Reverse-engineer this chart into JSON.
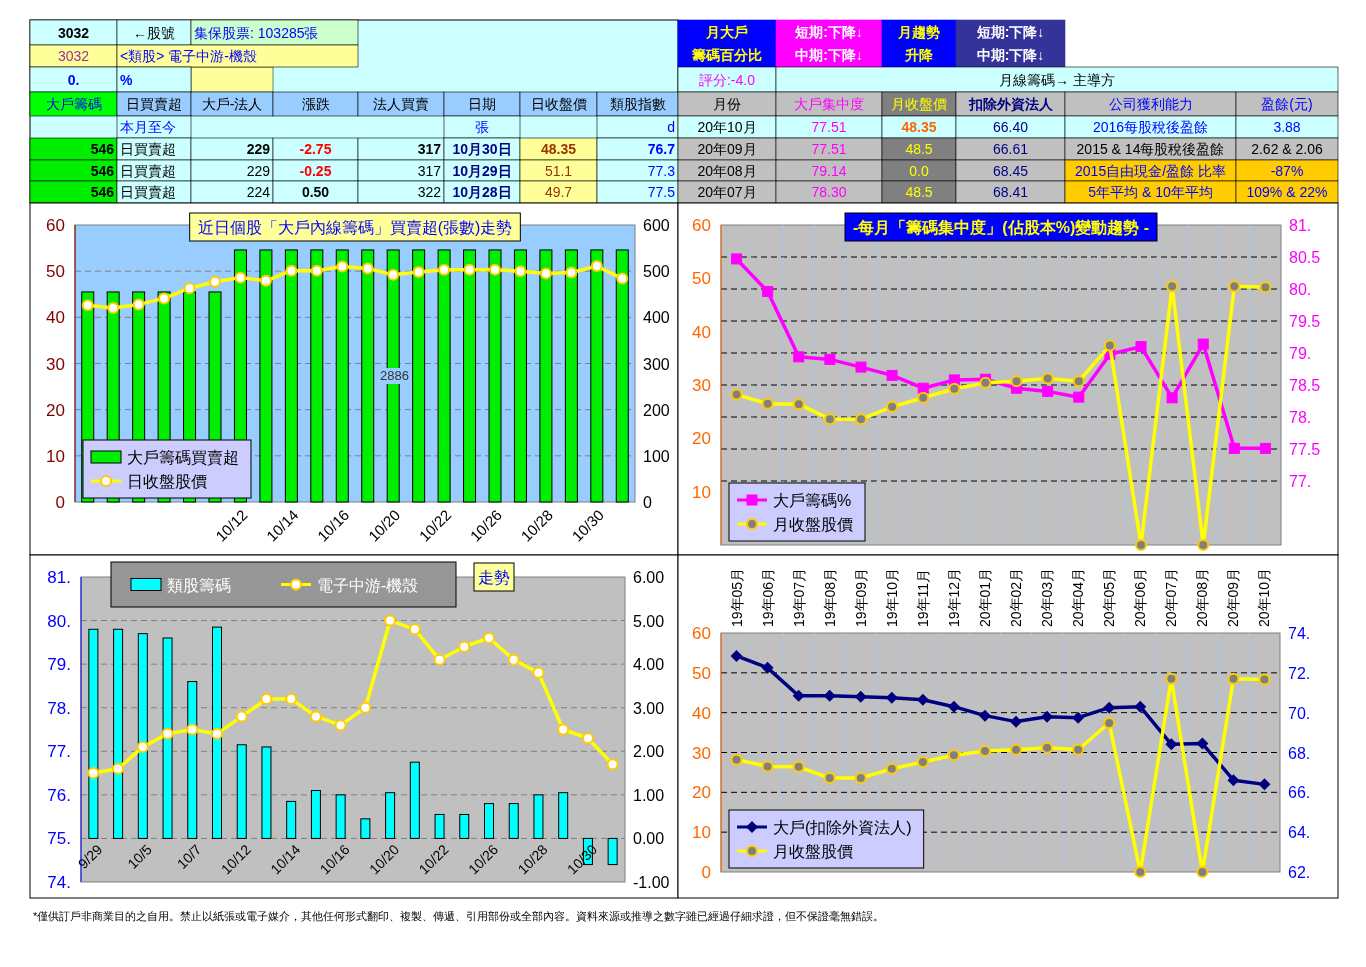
{
  "chart_data": [
    {
      "type": "other",
      "annotations": [
        "3032",
        "←股號",
        "集保股票: 103285張",
        "3032",
        "<類股> 電子中游-機殼",
        "0.",
        "%",
        "大戶籌碼",
        "日買賣超",
        "大戶-法人",
        "漲跌",
        "法人買賣",
        "日期",
        "日收盤價",
        "類股指數",
        "本月至今",
        "張",
        "d",
        "546",
        "日買賣超",
        "229",
        "-2.75",
        "317",
        "10月30日",
        "48.35",
        "76.7",
        "546",
        "日買賣超",
        "229",
        "-0.25",
        "317",
        "10月29日",
        "51.1",
        "77.3",
        "546",
        "日買賣超",
        "224",
        "0.50",
        "322",
        "10月28日",
        "49.7",
        "77.5",
        "月大戶",
        "籌碼百分比",
        "短期:下降↓",
        "中期:下降↓",
        "月趨勢",
        "升降",
        "短期:下降↓",
        "中期:下降↓",
        "評分:-4.0",
        "月線籌碼→ 主導方",
        "月份",
        "大戶集中度",
        "月收盤價",
        "扣除外資法人",
        "公司獲利能力",
        "盈餘(元)",
        "20年10月",
        "77.51",
        "48.35",
        "66.40",
        "2016每股稅後盈餘",
        "3.88",
        "20年09月",
        "77.51",
        "48.5",
        "66.61",
        "2015 & 14每股稅後盈餘",
        "2.62 & 2.06",
        "20年08月",
        "79.14",
        "0.0",
        "68.45",
        "2015自由現金/盈餘 比率",
        "-87%",
        "20年07月",
        "78.30",
        "48.5",
        "68.41",
        "5年平均 & 10年平均",
        "109% & 22%",
        "*僅供訂戶非商業目的之自用。禁止以紙張或電子媒介，其他任何形式翻印、複製、傳遞、引用部份或全部內容。資料來源或推導之數字雖已經過仔細求證，但不保證毫無錯誤。"
      ]
    },
    {
      "type": "bar",
      "title": "近日個股「大戶內線籌碼」買賣超(張數)走勢",
      "categories": [
        null,
        null,
        null,
        null,
        null,
        null,
        "10/12",
        null,
        "10/14",
        null,
        "10/16",
        null,
        "10/20",
        null,
        "10/22",
        null,
        "10/26",
        null,
        "10/28",
        null,
        "10/30",
        null
      ],
      "series": [
        {
          "name": "大戶籌碼買賣超",
          "type": "bar",
          "axis": "y2",
          "color": "#00ee00",
          "values": [
            455,
            455,
            455,
            455,
            455,
            455,
            546,
            546,
            546,
            546,
            546,
            546,
            546,
            546,
            546,
            546,
            546,
            546,
            546,
            546,
            546,
            546
          ]
        },
        {
          "name": "日收盤股價",
          "type": "line",
          "axis": "y",
          "color": "#ffff00",
          "marker": "circle",
          "values": [
            42.6,
            42.0,
            42.8,
            44.1,
            46.3,
            47.7,
            48.6,
            47.9,
            50.1,
            50.1,
            51.0,
            50.6,
            49.2,
            49.8,
            50.3,
            50.3,
            50.3,
            50.0,
            49.5,
            49.7,
            51.1,
            48.4
          ]
        }
      ],
      "ylim": [
        0,
        60
      ],
      "yticks": [
        0,
        10,
        20,
        30,
        40,
        50,
        60
      ],
      "y2lim": [
        0,
        600
      ],
      "y2ticks": [
        0,
        100,
        200,
        300,
        400,
        500,
        600
      ],
      "grid": "y",
      "legend": "bottom left",
      "annotations": [
        "2886"
      ]
    },
    {
      "type": "line",
      "title": "-每月「籌碼集中度」(佔股本%)變動趨勢 -",
      "categories": [
        null,
        null,
        null,
        null,
        null,
        null,
        null,
        null,
        null,
        null,
        null,
        null,
        null,
        null,
        null,
        null,
        null,
        null
      ],
      "series": [
        {
          "name": "大戶籌碼%",
          "type": "line",
          "axis": "y2",
          "color": "#ff00ff",
          "marker": "square",
          "values": [
            80.47,
            79.96,
            78.94,
            78.9,
            78.78,
            78.65,
            78.45,
            78.58,
            78.59,
            78.45,
            78.4,
            78.31,
            78.98,
            79.1,
            78.3,
            79.14,
            77.51,
            77.51
          ]
        },
        {
          "name": "月收盤股價",
          "type": "line",
          "axis": "y",
          "color": "#ffff00",
          "marker": "circle",
          "values": [
            28.2,
            26.5,
            26.4,
            23.6,
            23.6,
            25.9,
            27.6,
            29.3,
            30.4,
            30.7,
            31.2,
            30.7,
            37.4,
            0,
            48.5,
            0,
            48.5,
            48.35
          ]
        }
      ],
      "ylim": [
        0,
        60
      ],
      "yticks": [
        10,
        20,
        30,
        40,
        50,
        60
      ],
      "y2lim": [
        76,
        81
      ],
      "y2ticks": [
        {
          "value": 77,
          "label": "77."
        },
        {
          "value": 77.5,
          "label": "77.5"
        },
        {
          "value": 78,
          "label": "78."
        },
        {
          "value": 78.5,
          "label": "78.5"
        },
        {
          "value": 79,
          "label": "79."
        },
        {
          "value": 79.5,
          "label": "79.5"
        },
        {
          "value": 80,
          "label": "80."
        },
        {
          "value": 80.5,
          "label": "80.5"
        },
        {
          "value": 81,
          "label": "81."
        }
      ],
      "grid": true,
      "legend": "bottom left"
    },
    {
      "type": "bar",
      "title": "走勢",
      "categories": [
        "9/29",
        null,
        "10/5",
        null,
        "10/7",
        null,
        "10/12",
        null,
        "10/14",
        null,
        "10/16",
        null,
        "10/20",
        null,
        "10/22",
        null,
        "10/26",
        null,
        "10/28",
        null,
        "10/30",
        null
      ],
      "series": [
        {
          "name": "類股籌碼",
          "type": "bar",
          "axis": "y2",
          "color": "#00ffff",
          "values": [
            4.8,
            4.8,
            4.7,
            4.6,
            3.6,
            4.85,
            2.15,
            2.1,
            0.85,
            1.1,
            1.0,
            0.45,
            1.05,
            1.75,
            0.55,
            0.55,
            0.8,
            0.8,
            1.0,
            1.05,
            -0.6,
            -0.6
          ]
        },
        {
          "name": "電子中游-機殼",
          "type": "line",
          "axis": "y",
          "color": "#ffff00",
          "marker": "circle",
          "values": [
            76.5,
            76.6,
            77.1,
            77.4,
            77.5,
            77.4,
            77.8,
            78.2,
            78.2,
            77.8,
            77.6,
            78.0,
            80.0,
            79.8,
            79.1,
            79.4,
            79.6,
            79.1,
            78.8,
            77.5,
            77.3,
            76.7
          ]
        }
      ],
      "ylim": [
        74,
        81
      ],
      "yticks": [
        {
          "value": 74,
          "label": "74."
        },
        {
          "value": 75,
          "label": "75."
        },
        {
          "value": 76,
          "label": "76."
        },
        {
          "value": 77,
          "label": "77."
        },
        {
          "value": 78,
          "label": "78."
        },
        {
          "value": 79,
          "label": "79."
        },
        {
          "value": 80,
          "label": "80."
        },
        {
          "value": 81,
          "label": "81."
        }
      ],
      "y2lim": [
        -1,
        6
      ],
      "y2ticks": [
        {
          "value": -1,
          "label": "-1.00"
        },
        {
          "value": 0,
          "label": "0.00"
        },
        {
          "value": 1,
          "label": "1.00"
        },
        {
          "value": 2,
          "label": "2.00"
        },
        {
          "value": 3,
          "label": "3.00"
        },
        {
          "value": 4,
          "label": "4.00"
        },
        {
          "value": 5,
          "label": "5.00"
        },
        {
          "value": 6,
          "label": "6.00"
        }
      ],
      "grid": "y",
      "legend": "top"
    },
    {
      "type": "line",
      "categories": [
        "19年05月",
        "19年06月",
        "19年07月",
        "19年08月",
        "19年09月",
        "19年10月",
        "19年11月",
        "19年12月",
        "20年01月",
        "20年02月",
        "20年03月",
        "20年04月",
        "20年05月",
        "20年06月",
        "20年07月",
        "20年08月",
        "20年09月",
        "20年10月"
      ],
      "series": [
        {
          "name": "大戶(扣除外資法人)",
          "type": "line",
          "axis": "y2",
          "color": "#000080",
          "marker": "diamond",
          "values": [
            72.85,
            72.25,
            70.85,
            70.85,
            70.8,
            70.75,
            70.65,
            70.3,
            69.85,
            69.55,
            69.8,
            69.75,
            70.25,
            70.3,
            68.41,
            68.45,
            66.61,
            66.4
          ]
        },
        {
          "name": "月收盤股價",
          "type": "line",
          "axis": "y",
          "color": "#ffff00",
          "marker": "circle",
          "values": [
            28.2,
            26.5,
            26.4,
            23.6,
            23.6,
            25.9,
            27.6,
            29.3,
            30.4,
            30.7,
            31.2,
            30.7,
            37.4,
            0,
            48.5,
            0,
            48.5,
            48.35
          ]
        }
      ],
      "ylim": [
        0,
        60
      ],
      "yticks": [
        0,
        10,
        20,
        30,
        40,
        50,
        60
      ],
      "y2lim": [
        62,
        74
      ],
      "y2ticks": [
        {
          "value": 62,
          "label": "62."
        },
        {
          "value": 64,
          "label": "64."
        },
        {
          "value": 66,
          "label": "66."
        },
        {
          "value": 68,
          "label": "68."
        },
        {
          "value": 70,
          "label": "70."
        },
        {
          "value": 72,
          "label": "72."
        },
        {
          "value": 74,
          "label": "74."
        }
      ],
      "grid": true,
      "legend": "bottom left"
    }
  ]
}
